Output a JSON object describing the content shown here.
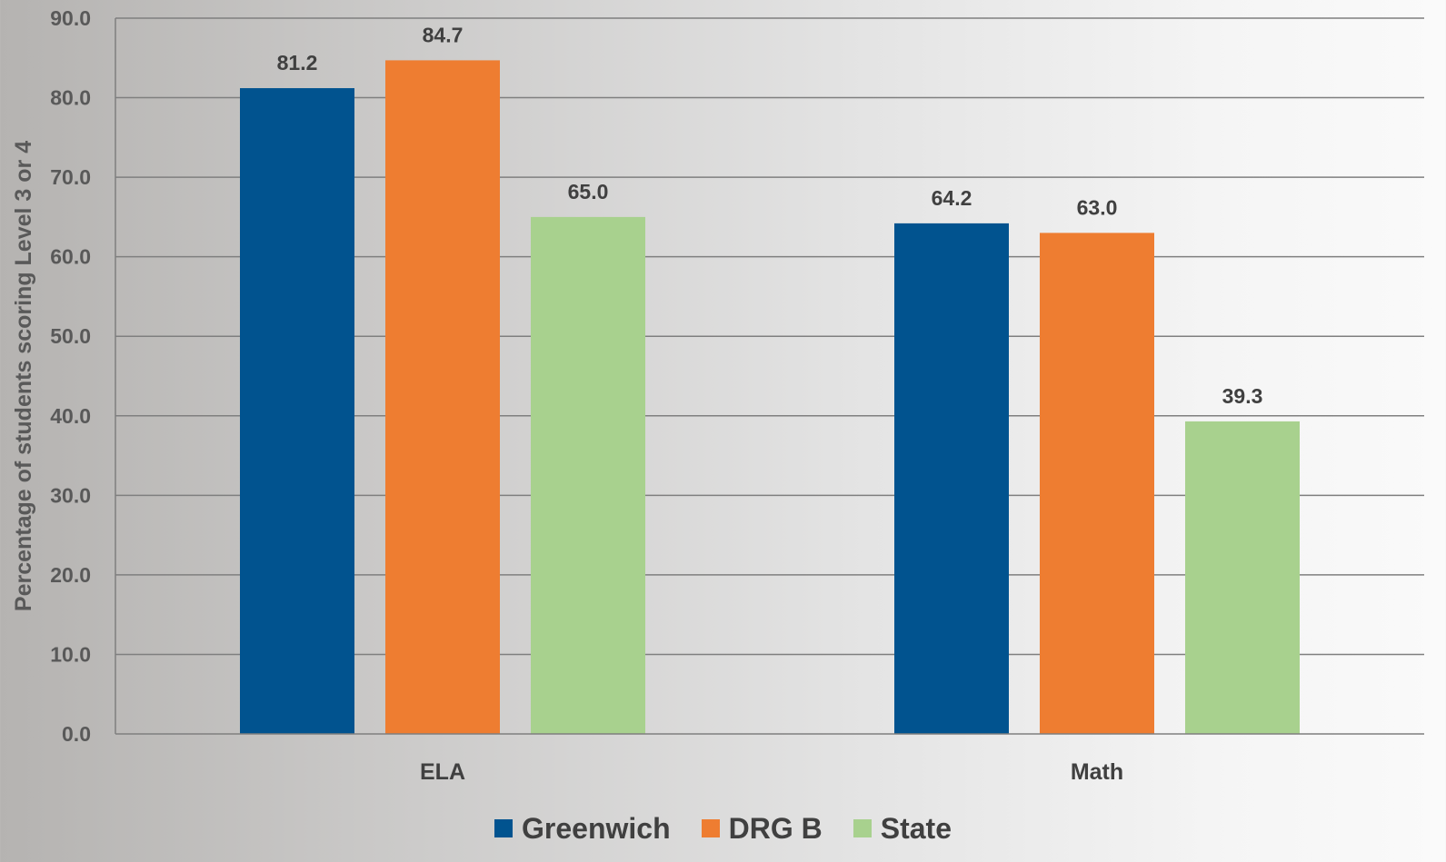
{
  "chart_data": {
    "type": "bar",
    "categories": [
      "ELA",
      "Math"
    ],
    "series": [
      {
        "name": "Greenwich",
        "values": [
          81.2,
          64.2
        ],
        "labels": [
          "81.2",
          "64.2"
        ],
        "color": "#01538f"
      },
      {
        "name": "DRG B",
        "values": [
          84.7,
          63.0
        ],
        "labels": [
          "84.7",
          "63.0"
        ],
        "color": "#ee7d31"
      },
      {
        "name": "State",
        "values": [
          65.0,
          39.3
        ],
        "labels": [
          "65.0",
          "39.3"
        ],
        "color": "#a8d18e"
      }
    ],
    "ylabel": "Percentage of students scoring Level 3 or 4",
    "xlabel": "",
    "ylim": [
      0,
      90
    ],
    "yticks": [
      "0.0",
      "10.0",
      "20.0",
      "30.0",
      "40.0",
      "50.0",
      "60.0",
      "70.0",
      "80.0",
      "90.0"
    ],
    "grid": true,
    "legend_position": "bottom",
    "gridline_color": "#7f7f7f"
  }
}
